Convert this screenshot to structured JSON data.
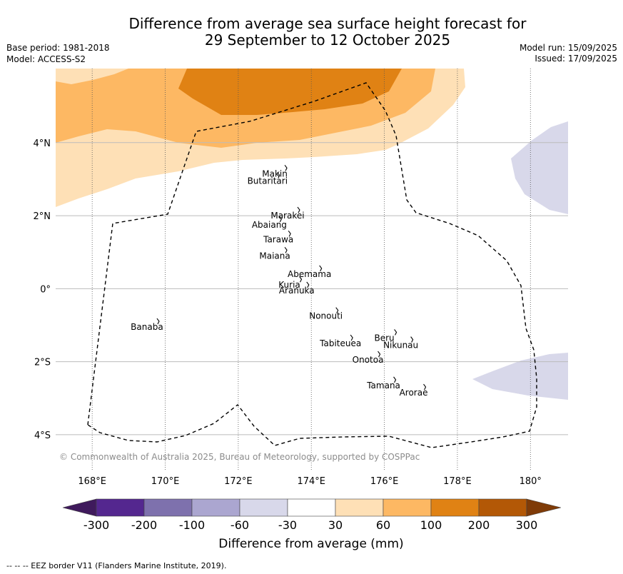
{
  "title": {
    "line1": "Difference from average sea surface height forecast for",
    "line2": "29 September to 12 October 2025"
  },
  "meta": {
    "base_period": "Base period: 1981-2018",
    "model": "Model: ACCESS-S2",
    "model_run": "Model run: 15/09/2025",
    "issued": "Issued: 17/09/2025"
  },
  "map": {
    "region": "Kiribati (Gilbert Islands)",
    "lat_range": [
      -4.96,
      6.03
    ],
    "lon_range": [
      167.0,
      181.03
    ],
    "lat_ticks": [
      {
        "value": 4,
        "label": "4°N"
      },
      {
        "value": 2,
        "label": "2°N"
      },
      {
        "value": 0,
        "label": "0°"
      },
      {
        "value": -2,
        "label": "2°S"
      },
      {
        "value": -4,
        "label": "4°S"
      }
    ],
    "lon_ticks": [
      {
        "value": 168,
        "label": "168°E"
      },
      {
        "value": 170,
        "label": "170°E"
      },
      {
        "value": 172,
        "label": "172°E"
      },
      {
        "value": 174,
        "label": "174°E"
      },
      {
        "value": 176,
        "label": "176°E"
      },
      {
        "value": 178,
        "label": "178°E"
      },
      {
        "value": 180,
        "label": "180°"
      }
    ],
    "places": [
      {
        "name": "Makin",
        "lon": 173.0,
        "lat": 3.15
      },
      {
        "name": "Butaritari",
        "lon": 172.8,
        "lat": 2.95
      },
      {
        "name": "Marakei",
        "lon": 173.35,
        "lat": 2.0
      },
      {
        "name": "Abaiang",
        "lon": 172.85,
        "lat": 1.75
      },
      {
        "name": "Tarawa",
        "lon": 173.1,
        "lat": 1.35
      },
      {
        "name": "Maiana",
        "lon": 173.0,
        "lat": 0.9
      },
      {
        "name": "Abemama",
        "lon": 173.95,
        "lat": 0.4
      },
      {
        "name": "Kuria",
        "lon": 173.4,
        "lat": 0.1
      },
      {
        "name": "Aranuka",
        "lon": 173.6,
        "lat": -0.05
      },
      {
        "name": "Nonouti",
        "lon": 174.4,
        "lat": -0.75
      },
      {
        "name": "Beru",
        "lon": 176.0,
        "lat": -1.35
      },
      {
        "name": "Nikunau",
        "lon": 176.45,
        "lat": -1.55
      },
      {
        "name": "Tabiteuea",
        "lon": 174.8,
        "lat": -1.5
      },
      {
        "name": "Onotoa",
        "lon": 175.55,
        "lat": -1.95
      },
      {
        "name": "Tamana",
        "lon": 175.98,
        "lat": -2.65
      },
      {
        "name": "Arorae",
        "lon": 176.8,
        "lat": -2.85
      },
      {
        "name": "Banaba",
        "lon": 169.5,
        "lat": -1.05
      }
    ],
    "copyright": "© Commonwealth of Australia 2025, Bureau of Meteorology, supported by COSPPac"
  },
  "legend": {
    "label": "Difference from average (mm)",
    "tick_labels": [
      "-300",
      "-200",
      "-100",
      "-60",
      "-30",
      "30",
      "60",
      "100",
      "200",
      "300"
    ],
    "colors": [
      "#3f1a5c",
      "#54278f",
      "#7e71ad",
      "#aba6d0",
      "#d8d8ea",
      "#ffffff",
      "#fee0b6",
      "#fdb863",
      "#e08214",
      "#b35806",
      "#7f3b08"
    ]
  },
  "footer": "--  --  -- EEZ border V11 (Flanders Marine Institute, 2019)."
}
